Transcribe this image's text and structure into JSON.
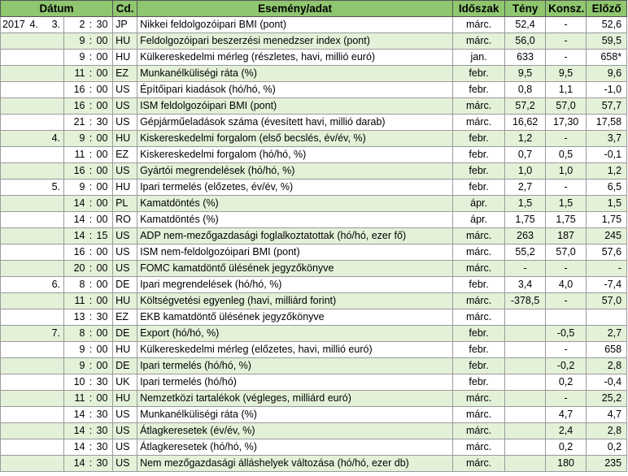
{
  "headers": {
    "date": "Dátum",
    "cd": "Cd.",
    "event": "Esemény/adat",
    "period": "Időszak",
    "actual": "Tény",
    "consensus": "Konsz.",
    "previous": "Előző"
  },
  "rows": [
    {
      "year": "2017",
      "month": "4.",
      "day": "3.",
      "hour": "2",
      "colon": ":",
      "min": "30",
      "cd": "JP",
      "event": "Nikkei feldolgozóipari BMI (pont)",
      "period": "márc.",
      "actual": "52,4",
      "cons": "-",
      "prev": "52,6"
    },
    {
      "year": "",
      "month": "",
      "day": "",
      "hour": "9",
      "colon": ":",
      "min": "00",
      "cd": "HU",
      "event": "Feldolgozóipari beszerzési menedzser index (pont)",
      "period": "márc.",
      "actual": "56,0",
      "cons": "-",
      "prev": "59,5"
    },
    {
      "year": "",
      "month": "",
      "day": "",
      "hour": "9",
      "colon": ":",
      "min": "00",
      "cd": "HU",
      "event": "Külkereskedelmi mérleg (részletes, havi, millió euró)",
      "period": "jan.",
      "actual": "633",
      "cons": "-",
      "prev": "658*"
    },
    {
      "year": "",
      "month": "",
      "day": "",
      "hour": "11",
      "colon": ":",
      "min": "00",
      "cd": "EZ",
      "event": "Munkanélküliségi ráta (%)",
      "period": "febr.",
      "actual": "9,5",
      "cons": "9,5",
      "prev": "9,6"
    },
    {
      "year": "",
      "month": "",
      "day": "",
      "hour": "16",
      "colon": ":",
      "min": "00",
      "cd": "US",
      "event": "Építőipari kiadások (hó/hó, %)",
      "period": "febr.",
      "actual": "0,8",
      "cons": "1,1",
      "prev": "-1,0"
    },
    {
      "year": "",
      "month": "",
      "day": "",
      "hour": "16",
      "colon": ":",
      "min": "00",
      "cd": "US",
      "event": "ISM feldolgozóipari BMI (pont)",
      "period": "márc.",
      "actual": "57,2",
      "cons": "57,0",
      "prev": "57,7"
    },
    {
      "year": "",
      "month": "",
      "day": "",
      "hour": "21",
      "colon": ":",
      "min": "30",
      "cd": "US",
      "event": "Gépjárműeladások száma (évesített havi, millió darab)",
      "period": "márc.",
      "actual": "16,62",
      "cons": "17,30",
      "prev": "17,58"
    },
    {
      "year": "",
      "month": "",
      "day": "4.",
      "hour": "9",
      "colon": ":",
      "min": "00",
      "cd": "HU",
      "event": "Kiskereskedelmi forgalom (első becslés, év/év, %)",
      "period": "febr.",
      "actual": "1,2",
      "cons": "-",
      "prev": "3,7"
    },
    {
      "year": "",
      "month": "",
      "day": "",
      "hour": "11",
      "colon": ":",
      "min": "00",
      "cd": "EZ",
      "event": "Kiskereskedelmi forgalom (hó/hó, %)",
      "period": "febr.",
      "actual": "0,7",
      "cons": "0,5",
      "prev": "-0,1"
    },
    {
      "year": "",
      "month": "",
      "day": "",
      "hour": "16",
      "colon": ":",
      "min": "00",
      "cd": "US",
      "event": "Gyártói megrendelések (hó/hó, %)",
      "period": "febr.",
      "actual": "1,0",
      "cons": "1,0",
      "prev": "1,2"
    },
    {
      "year": "",
      "month": "",
      "day": "5.",
      "hour": "9",
      "colon": ":",
      "min": "00",
      "cd": "HU",
      "event": "Ipari termelés (előzetes, év/év, %)",
      "period": "febr.",
      "actual": "2,7",
      "cons": "-",
      "prev": "6,5"
    },
    {
      "year": "",
      "month": "",
      "day": "",
      "hour": "14",
      "colon": ":",
      "min": "00",
      "cd": "PL",
      "event": "Kamatdöntés (%)",
      "period": "ápr.",
      "actual": "1,5",
      "cons": "1,5",
      "prev": "1,5"
    },
    {
      "year": "",
      "month": "",
      "day": "",
      "hour": "14",
      "colon": ":",
      "min": "00",
      "cd": "RO",
      "event": "Kamatdöntés (%)",
      "period": "ápr.",
      "actual": "1,75",
      "cons": "1,75",
      "prev": "1,75"
    },
    {
      "year": "",
      "month": "",
      "day": "",
      "hour": "14",
      "colon": ":",
      "min": "15",
      "cd": "US",
      "event": "ADP nem-mezőgazdasági foglalkoztatottak (hó/hó, ezer fő)",
      "period": "márc.",
      "actual": "263",
      "cons": "187",
      "prev": "245"
    },
    {
      "year": "",
      "month": "",
      "day": "",
      "hour": "16",
      "colon": ":",
      "min": "00",
      "cd": "US",
      "event": "ISM nem-feldolgozóipari BMI (pont)",
      "period": "márc.",
      "actual": "55,2",
      "cons": "57,0",
      "prev": "57,6"
    },
    {
      "year": "",
      "month": "",
      "day": "",
      "hour": "20",
      "colon": ":",
      "min": "00",
      "cd": "US",
      "event": "FOMC kamatdöntő ülésének jegyzőkönyve",
      "period": "márc.",
      "actual": "-",
      "cons": "-",
      "prev": "-"
    },
    {
      "year": "",
      "month": "",
      "day": "6.",
      "hour": "8",
      "colon": ":",
      "min": "00",
      "cd": "DE",
      "event": "Ipari megrendelések (hó/hó, %)",
      "period": "febr.",
      "actual": "3,4",
      "cons": "4,0",
      "prev": "-7,4"
    },
    {
      "year": "",
      "month": "",
      "day": "",
      "hour": "11",
      "colon": ":",
      "min": "00",
      "cd": "HU",
      "event": "Költségvetési egyenleg (havi, milliárd forint)",
      "period": "márc.",
      "actual": "-378,5",
      "cons": "-",
      "prev": "57,0"
    },
    {
      "year": "",
      "month": "",
      "day": "",
      "hour": "13",
      "colon": ":",
      "min": "30",
      "cd": "EZ",
      "event": "EKB kamatdöntő ülésének jegyzőkönyve",
      "period": "márc.",
      "actual": "",
      "cons": "",
      "prev": ""
    },
    {
      "year": "",
      "month": "",
      "day": "7.",
      "hour": "8",
      "colon": ":",
      "min": "00",
      "cd": "DE",
      "event": "Export (hó/hó, %)",
      "period": "febr.",
      "actual": "",
      "cons": "-0,5",
      "prev": "2,7"
    },
    {
      "year": "",
      "month": "",
      "day": "",
      "hour": "9",
      "colon": ":",
      "min": "00",
      "cd": "HU",
      "event": "Külkereskedelmi mérleg (előzetes, havi, millió euró)",
      "period": "febr.",
      "actual": "",
      "cons": "-",
      "prev": "658"
    },
    {
      "year": "",
      "month": "",
      "day": "",
      "hour": "9",
      "colon": ":",
      "min": "00",
      "cd": "DE",
      "event": "Ipari termelés (hó/hó, %)",
      "period": "febr.",
      "actual": "",
      "cons": "-0,2",
      "prev": "2,8"
    },
    {
      "year": "",
      "month": "",
      "day": "",
      "hour": "10",
      "colon": ":",
      "min": "30",
      "cd": "UK",
      "event": "Ipari termelés (hó/hó)",
      "period": "febr.",
      "actual": "",
      "cons": "0,2",
      "prev": "-0,4"
    },
    {
      "year": "",
      "month": "",
      "day": "",
      "hour": "11",
      "colon": ":",
      "min": "00",
      "cd": "HU",
      "event": "Nemzetközi tartalékok (végleges, milliárd euró)",
      "period": "márc.",
      "actual": "",
      "cons": "-",
      "prev": "25,2"
    },
    {
      "year": "",
      "month": "",
      "day": "",
      "hour": "14",
      "colon": ":",
      "min": "30",
      "cd": "US",
      "event": "Munkanélküliségi ráta (%)",
      "period": "márc.",
      "actual": "",
      "cons": "4,7",
      "prev": "4,7"
    },
    {
      "year": "",
      "month": "",
      "day": "",
      "hour": "14",
      "colon": ":",
      "min": "30",
      "cd": "US",
      "event": "Átlagkeresetek (év/év, %)",
      "period": "márc.",
      "actual": "",
      "cons": "2,4",
      "prev": "2,8"
    },
    {
      "year": "",
      "month": "",
      "day": "",
      "hour": "14",
      "colon": ":",
      "min": "30",
      "cd": "US",
      "event": "Átlagkeresetek (hó/hó, %)",
      "period": "márc.",
      "actual": "",
      "cons": "0,2",
      "prev": "0,2"
    },
    {
      "year": "",
      "month": "",
      "day": "",
      "hour": "14",
      "colon": ":",
      "min": "30",
      "cd": "US",
      "event": "Nem mezőgazdasági álláshelyek változása (hó/hó, ezer db)",
      "period": "márc.",
      "actual": "",
      "cons": "180",
      "prev": "235"
    }
  ]
}
